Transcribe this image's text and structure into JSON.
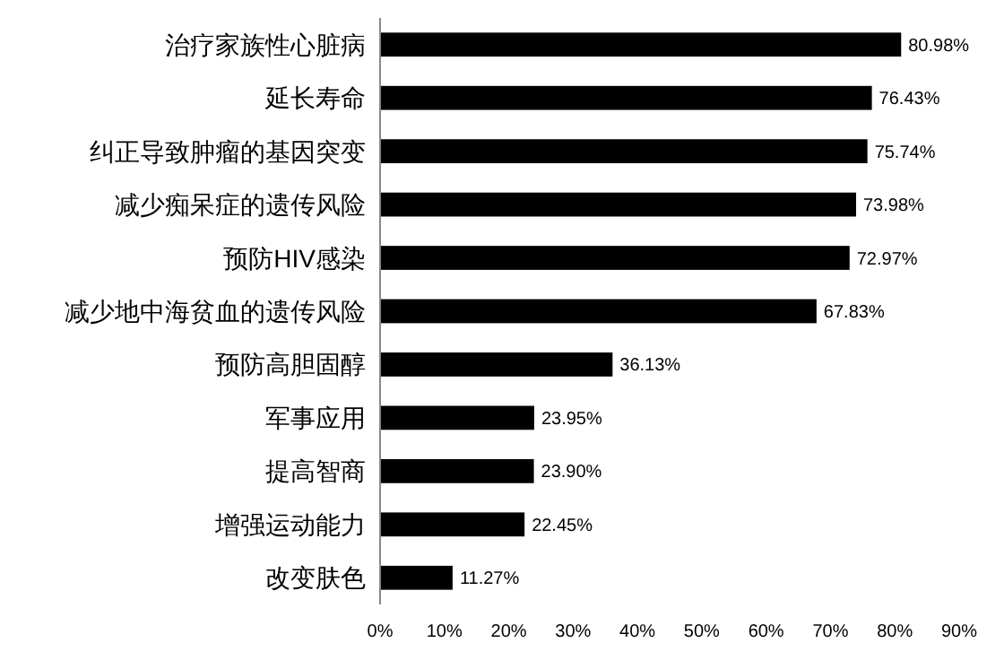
{
  "chart_data": {
    "type": "bar",
    "orientation": "horizontal",
    "categories": [
      "治疗家族性心脏病",
      "延长寿命",
      "纠正导致肿瘤的基因突变",
      "减少痴呆症的遗传风险",
      "预防HIV感染",
      "减少地中海贫血的遗传风险",
      "预防高胆固醇",
      "军事应用",
      "提高智商",
      "增强运动能力",
      "改变肤色"
    ],
    "values": [
      80.98,
      76.43,
      75.74,
      73.98,
      72.97,
      67.83,
      36.13,
      23.95,
      23.9,
      22.45,
      11.27
    ],
    "value_labels": [
      "80.98%",
      "76.43%",
      "75.74%",
      "73.98%",
      "72.97%",
      "67.83%",
      "36.13%",
      "23.95%",
      "23.90%",
      "22.45%",
      "11.27%"
    ],
    "color": "#000000",
    "xlim": [
      0,
      90
    ],
    "xticks": [
      {
        "value": 0,
        "label": "0%"
      },
      {
        "value": 10,
        "label": "10%"
      },
      {
        "value": 20,
        "label": "20%"
      },
      {
        "value": 30,
        "label": "30%"
      },
      {
        "value": 40,
        "label": "40%"
      },
      {
        "value": 50,
        "label": "50%"
      },
      {
        "value": 60,
        "label": "60%"
      },
      {
        "value": 70,
        "label": "70%"
      },
      {
        "value": 80,
        "label": "80%"
      },
      {
        "value": 90,
        "label": "90%"
      }
    ]
  }
}
